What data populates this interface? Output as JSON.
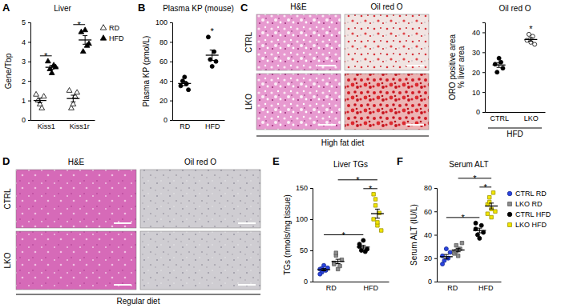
{
  "chart_data": [
    {
      "type": "dot",
      "panel_label": "A",
      "title": "Liver",
      "ylabel": "Gene/Tbp",
      "categories": [
        "Kiss1",
        "Kiss1r"
      ],
      "ylim": [
        0,
        5
      ],
      "yticks": [
        0,
        1,
        2,
        3,
        4,
        5
      ],
      "legend": "right",
      "series": [
        {
          "name": "RD",
          "color": "#000000",
          "marker": "triangle-open",
          "values": [
            [
              1.3,
              1.0,
              0.8,
              0.6,
              1.2
            ],
            [
              1.5,
              0.6,
              0.8,
              1.2,
              1.4
            ]
          ],
          "mean": [
            1.0,
            1.1
          ],
          "error": [
            0.12,
            0.17
          ]
        },
        {
          "name": "HFD",
          "color": "#000000",
          "marker": "triangle",
          "values": [
            [
              3.0,
              2.6,
              2.4,
              2.8,
              2.7
            ],
            [
              4.5,
              3.5,
              4.6,
              3.8,
              3.9
            ]
          ],
          "mean": [
            2.7,
            4.1
          ],
          "error": [
            0.1,
            0.22
          ]
        }
      ],
      "significance": [
        {
          "groups": [
            0,
            1
          ],
          "label": "*"
        },
        {
          "groups": [
            2,
            3
          ],
          "label": "*"
        }
      ]
    },
    {
      "type": "dot",
      "panel_label": "B",
      "title": "Plasma KP (mouse)",
      "ylabel": "Plasma KP (pmol/L)",
      "categories": [
        "RD",
        "HFD"
      ],
      "ylim": [
        0,
        100
      ],
      "yticks": [
        0,
        20,
        40,
        60,
        80,
        100
      ],
      "series": [
        {
          "color": "#000000",
          "marker": "circle",
          "values": [
            [
              35,
              40,
              44,
              37,
              31
            ],
            [
              85,
              62,
              55,
              70,
              60
            ]
          ],
          "mean": [
            37.4,
            66.4
          ],
          "error": [
            2.2,
            5.3
          ]
        }
      ],
      "significance": [
        {
          "groups": [
            1
          ],
          "label": "*"
        }
      ]
    },
    {
      "type": "dot",
      "title": "Oil red O",
      "ylabel": [
        "ORO positive area",
        "% liver area"
      ],
      "categories": [
        "CTRL",
        "LKO"
      ],
      "xlabel": "HFD",
      "ylim": [
        0,
        45
      ],
      "yticks": [
        0,
        10,
        20,
        30,
        40
      ],
      "series": [
        {
          "color": "#000000",
          "marker": "circle",
          "values": [
            [
              24,
              20,
              27,
              25,
              22
            ],
            null
          ],
          "mean": [
            23.6,
            null
          ],
          "error": [
            1.2,
            null
          ]
        },
        {
          "color": "#000000",
          "marker": "circle-open",
          "values": [
            null,
            [
              36,
              39,
              35,
              38,
              34
            ]
          ],
          "mean": [
            null,
            36.4
          ],
          "error": [
            null,
            0.9
          ]
        }
      ],
      "significance": [
        {
          "groups": [
            1
          ],
          "label": "*"
        }
      ]
    },
    {
      "type": "dot",
      "panel_label": "E",
      "title": "Liver TGs",
      "ylabel": "TGs (nmols/mg tissue)",
      "categories": [
        "RD",
        "HFD"
      ],
      "ylim": [
        0,
        150
      ],
      "yticks": [
        0,
        50,
        100,
        150
      ],
      "series": [
        {
          "color": "#2a44e0",
          "marker": "circle",
          "values": [
            [
              20,
              15,
              26,
              18,
              22,
              12,
              21
            ],
            null
          ],
          "mean": [
            19.1,
            null
          ],
          "error": [
            1.8,
            null
          ]
        },
        {
          "color": "#8c8c8c",
          "marker": "square",
          "values": [
            [
              30,
              42,
              20,
              25,
              35,
              28,
              46
            ],
            null
          ],
          "mean": [
            32.3,
            null
          ],
          "error": [
            3.5,
            null
          ]
        },
        {
          "color": "#000000",
          "marker": "circle",
          "values": [
            null,
            [
              56,
              50,
              66,
              48,
              52,
              60
            ]
          ],
          "mean": [
            null,
            55.3
          ],
          "error": [
            null,
            2.8
          ]
        },
        {
          "color": "#f2e600",
          "marker": "square",
          "values": [
            null,
            [
              140,
              122,
              90,
              110,
              82,
              100,
              132,
              95
            ]
          ],
          "mean": [
            null,
            108.9
          ],
          "error": [
            null,
            7.3
          ]
        }
      ],
      "significance": [
        {
          "groups": [
            2,
            3
          ],
          "label": "*"
        },
        {
          "groups": [
            1,
            3
          ],
          "label": "*"
        },
        {
          "groups": [
            0,
            2
          ],
          "label": "*"
        }
      ]
    },
    {
      "type": "dot",
      "panel_label": "F",
      "title": "Serum ALT",
      "ylabel": "Serum ALT (IU/L)",
      "categories": [
        "RD",
        "HFD"
      ],
      "ylim": [
        0,
        80
      ],
      "yticks": [
        0,
        20,
        40,
        60,
        80
      ],
      "legend": "right",
      "series": [
        {
          "name": "CTRL RD",
          "color": "#2a44e0",
          "marker": "circle",
          "values": [
            [
              22,
              18,
              28,
              20,
              25,
              15
            ],
            null
          ],
          "mean": [
            21.3,
            null
          ],
          "error": [
            1.9,
            null
          ]
        },
        {
          "name": "LKO RD",
          "color": "#8c8c8c",
          "marker": "square",
          "values": [
            [
              25,
              31,
              22,
              28,
              33,
              24,
              26
            ],
            null
          ],
          "mean": [
            27,
            null
          ],
          "error": [
            1.5,
            null
          ]
        },
        {
          "name": "CTRL HFD",
          "color": "#000000",
          "marker": "circle",
          "values": [
            null,
            [
              45,
              40,
              37,
              48,
              42,
              50
            ]
          ],
          "mean": [
            null,
            43.7
          ],
          "error": [
            null,
            2.0
          ]
        },
        {
          "name": "LKO HFD",
          "color": "#f2e600",
          "marker": "square",
          "values": [
            null,
            [
              66,
              72,
              55,
              76,
              60,
              58,
              68,
              62
            ]
          ],
          "mean": [
            null,
            64.6
          ],
          "error": [
            null,
            2.5
          ]
        }
      ],
      "significance": [
        {
          "groups": [
            2,
            3
          ],
          "label": "*"
        },
        {
          "groups": [
            1,
            3
          ],
          "label": "*"
        },
        {
          "groups": [
            0,
            2
          ],
          "label": "*"
        }
      ]
    }
  ],
  "image_panels": [
    {
      "panel_label": "C",
      "columns": [
        "H&E",
        "Oil red O"
      ],
      "rows": [
        "CTRL",
        "LKO"
      ],
      "caption": "High fat diet"
    },
    {
      "panel_label": "D",
      "columns": [
        "H&E",
        "Oil red O"
      ],
      "rows": [
        "CTRL",
        "LKO"
      ],
      "caption": "Regular diet"
    }
  ]
}
